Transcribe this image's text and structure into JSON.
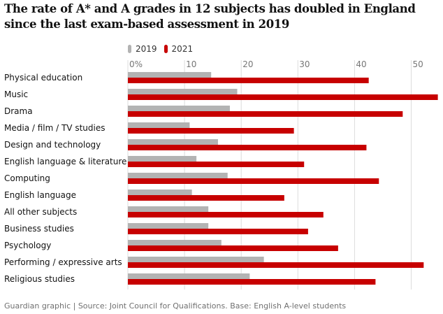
{
  "chart_data": {
    "type": "bar",
    "title": "The rate of A* and A grades in 12 subjects has doubled in England since the last exam-based assessment in 2019",
    "categories": [
      "Physical education",
      "Music",
      "Drama",
      "Media / film / TV studies",
      "Design and technology",
      "English language & literature",
      "Computing",
      "English language",
      "All other subjects",
      "Business studies",
      "Psychology",
      "Performing / expressive arts",
      "Religious studies"
    ],
    "series": [
      {
        "name": "2019",
        "color": "#b3b3b3",
        "values": [
          14.7,
          19.3,
          18.0,
          10.9,
          15.9,
          12.1,
          17.6,
          11.3,
          14.2,
          14.2,
          16.5,
          24.0,
          21.5
        ]
      },
      {
        "name": "2021",
        "color": "#c70000",
        "values": [
          42.5,
          54.7,
          48.5,
          29.3,
          42.1,
          31.1,
          44.3,
          27.6,
          34.5,
          31.8,
          37.1,
          52.2,
          43.7
        ]
      }
    ],
    "xticks": [
      "0%",
      "10",
      "20",
      "30",
      "40",
      "50"
    ],
    "tick_values": [
      0,
      10,
      20,
      30,
      40,
      50
    ],
    "xlim": [
      0,
      54.7
    ],
    "grid": true,
    "legend_position": "top-left"
  },
  "footer": "Guardian graphic | Source: Joint Council for Qualifications. Base: English A-level students"
}
